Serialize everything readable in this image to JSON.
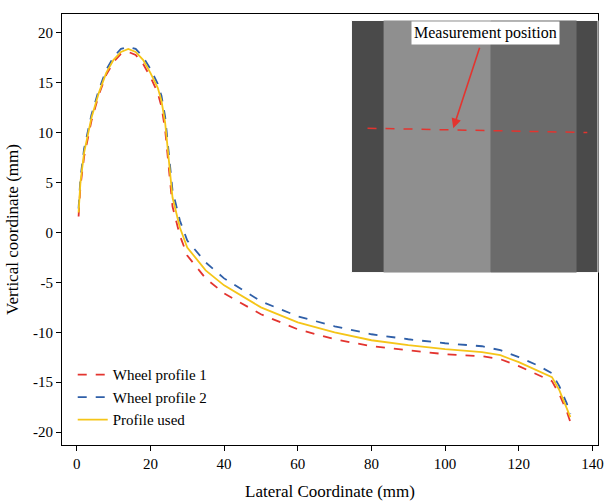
{
  "chart_data": {
    "type": "line",
    "x_label": "Lateral Coordinate (mm)",
    "y_label": "Vertical coordinate (mm)",
    "xlim": [
      -4,
      141.5
    ],
    "ylim": [
      -21.3,
      21.9
    ],
    "xticks": [
      0,
      20,
      40,
      60,
      80,
      100,
      120,
      140
    ],
    "yticks": [
      -20,
      -15,
      -10,
      -5,
      0,
      5,
      10,
      15,
      20
    ],
    "grid": false,
    "legend": "lower left",
    "annotations": [
      {
        "text": "Measurement position"
      }
    ],
    "series": [
      {
        "name": "Wheel profile 1",
        "color": "#e3342f",
        "line_style": "dash",
        "x": [
          0.5,
          1,
          2,
          4,
          6,
          8,
          10,
          12,
          14,
          16,
          18,
          20,
          22,
          23,
          24,
          25,
          26,
          28,
          30,
          35,
          40,
          50,
          60,
          70,
          80,
          90,
          100,
          110,
          115,
          120,
          125,
          129,
          131,
          133,
          134
        ],
        "values": [
          1.6,
          4.6,
          7.6,
          11.2,
          13.8,
          15.8,
          17.1,
          17.9,
          18.1,
          17.8,
          16.9,
          15.6,
          14.0,
          12.6,
          10.3,
          6.6,
          2.6,
          -0.3,
          -2.3,
          -4.6,
          -6.1,
          -8.2,
          -9.7,
          -10.7,
          -11.4,
          -11.8,
          -12.2,
          -12.4,
          -12.7,
          -13.4,
          -14.2,
          -14.9,
          -16.2,
          -17.9,
          -19.0
        ]
      },
      {
        "name": "Wheel profile 2",
        "color": "#2f5fa8",
        "line_style": "dash",
        "x": [
          0.5,
          1,
          2,
          4,
          6,
          8,
          10,
          12,
          14,
          16,
          18,
          20,
          22,
          23,
          24,
          25,
          26,
          28,
          30,
          35,
          40,
          50,
          60,
          70,
          80,
          90,
          100,
          110,
          115,
          120,
          125,
          129,
          131,
          133,
          134
        ],
        "values": [
          2.4,
          5.4,
          8.4,
          11.8,
          14.3,
          16.3,
          17.6,
          18.4,
          18.6,
          18.4,
          17.6,
          16.4,
          14.9,
          13.7,
          11.6,
          8.1,
          4.2,
          1.2,
          -0.8,
          -3.0,
          -4.6,
          -6.9,
          -8.4,
          -9.4,
          -10.2,
          -10.7,
          -11.1,
          -11.4,
          -11.8,
          -12.5,
          -13.3,
          -14.1,
          -15.4,
          -17.1,
          -18.2
        ]
      },
      {
        "name": "Profile used",
        "color": "#f5c518",
        "line_style": "solid",
        "x": [
          0.5,
          1,
          2,
          4,
          6,
          8,
          10,
          12,
          14,
          16,
          18,
          20,
          22,
          23,
          24,
          25,
          26,
          28,
          30,
          35,
          40,
          50,
          60,
          70,
          80,
          90,
          100,
          110,
          115,
          120,
          125,
          129,
          131,
          133,
          134
        ],
        "values": [
          2.0,
          5.0,
          8.0,
          11.5,
          14.0,
          16.0,
          17.3,
          18.1,
          18.4,
          18.1,
          17.3,
          16.0,
          14.5,
          13.2,
          11.0,
          7.5,
          3.5,
          0.5,
          -1.5,
          -3.8,
          -5.3,
          -7.5,
          -9.0,
          -10.0,
          -10.8,
          -11.3,
          -11.7,
          -12.0,
          -12.3,
          -13.0,
          -13.8,
          -14.5,
          -15.8,
          -17.5,
          -18.5
        ]
      }
    ]
  }
}
